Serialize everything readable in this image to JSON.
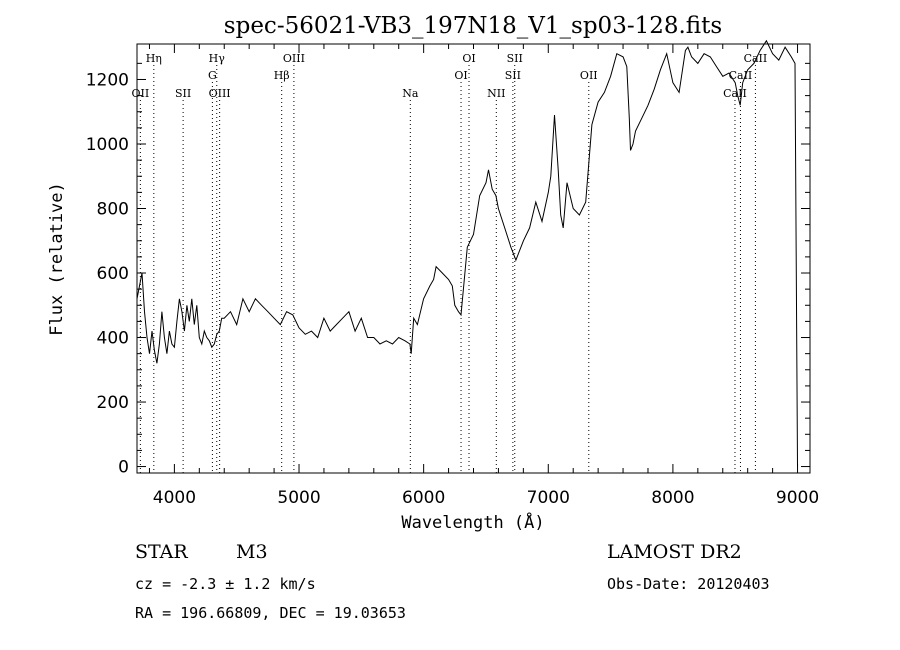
{
  "chart_data": {
    "type": "line",
    "title": "spec-56021-VB3_197N18_V1_sp03-128.fits",
    "xlabel": "Wavelength (Å)",
    "ylabel": "Flux (relative)",
    "xlim": [
      3700,
      9100
    ],
    "ylim": [
      -20,
      1310
    ],
    "xticks": [
      4000,
      5000,
      6000,
      7000,
      8000,
      9000
    ],
    "yticks": [
      0,
      200,
      400,
      600,
      800,
      1000,
      1200
    ],
    "grid": false,
    "series": [
      {
        "color": "#000000",
        "x": [
          3700,
          3720,
          3740,
          3760,
          3780,
          3800,
          3820,
          3840,
          3860,
          3880,
          3900,
          3920,
          3940,
          3960,
          3980,
          4000,
          4020,
          4040,
          4060,
          4080,
          4100,
          4120,
          4140,
          4160,
          4180,
          4200,
          4220,
          4240,
          4260,
          4280,
          4300,
          4320,
          4340,
          4360,
          4380,
          4400,
          4450,
          4500,
          4550,
          4600,
          4650,
          4700,
          4750,
          4800,
          4850,
          4900,
          4950,
          5000,
          5050,
          5100,
          5150,
          5200,
          5250,
          5300,
          5350,
          5400,
          5450,
          5500,
          5550,
          5600,
          5650,
          5700,
          5750,
          5800,
          5850,
          5890,
          5900,
          5920,
          5950,
          6000,
          6050,
          6080,
          6100,
          6150,
          6200,
          6230,
          6250,
          6280,
          6300,
          6350,
          6400,
          6450,
          6500,
          6520,
          6550,
          6580,
          6600,
          6650,
          6700,
          6720,
          6740,
          6800,
          6850,
          6900,
          6950,
          7000,
          7020,
          7050,
          7080,
          7100,
          7120,
          7150,
          7200,
          7250,
          7300,
          7350,
          7400,
          7450,
          7500,
          7550,
          7600,
          7630,
          7650,
          7660,
          7680,
          7700,
          7750,
          7800,
          7850,
          7900,
          7950,
          8000,
          8050,
          8100,
          8120,
          8150,
          8200,
          8250,
          8300,
          8350,
          8400,
          8450,
          8500,
          8520,
          8540,
          8560,
          8600,
          8650,
          8700,
          8750,
          8800,
          8850,
          8900,
          8950,
          8980,
          9000
        ],
        "y": [
          520,
          560,
          600,
          480,
          400,
          350,
          420,
          360,
          320,
          380,
          480,
          400,
          350,
          420,
          380,
          370,
          450,
          520,
          480,
          420,
          500,
          450,
          520,
          440,
          500,
          400,
          380,
          420,
          400,
          390,
          370,
          380,
          410,
          420,
          460,
          460,
          480,
          440,
          520,
          480,
          520,
          500,
          480,
          460,
          440,
          480,
          470,
          430,
          410,
          420,
          400,
          460,
          420,
          440,
          460,
          480,
          420,
          460,
          400,
          400,
          380,
          390,
          380,
          400,
          390,
          380,
          350,
          460,
          440,
          520,
          560,
          580,
          620,
          600,
          580,
          560,
          500,
          480,
          470,
          680,
          720,
          840,
          880,
          920,
          860,
          840,
          800,
          740,
          680,
          660,
          640,
          700,
          740,
          820,
          760,
          850,
          900,
          1090,
          920,
          780,
          740,
          880,
          800,
          780,
          820,
          1060,
          1130,
          1160,
          1210,
          1280,
          1270,
          1240,
          1080,
          980,
          1000,
          1040,
          1080,
          1120,
          1170,
          1230,
          1280,
          1190,
          1160,
          1290,
          1300,
          1270,
          1250,
          1280,
          1270,
          1240,
          1210,
          1220,
          1190,
          1150,
          1120,
          1190,
          1230,
          1250,
          1290,
          1320,
          1280,
          1260,
          1300,
          1270,
          1250,
          0
        ]
      }
    ],
    "lines": [
      {
        "label": "Hη",
        "wave": 3835,
        "row": 1
      },
      {
        "label": "OII",
        "wave": 3727,
        "row": 3
      },
      {
        "label": "SII",
        "wave": 4070,
        "row": 3
      },
      {
        "label": "Hγ",
        "wave": 4340,
        "row": 1
      },
      {
        "label": "G",
        "wave": 4305,
        "row": 2
      },
      {
        "label": "OIII",
        "wave": 4363,
        "row": 3
      },
      {
        "label": "OIII",
        "wave": 4959,
        "row": 1
      },
      {
        "label": "Hβ",
        "wave": 4861,
        "row": 2
      },
      {
        "label": "Na",
        "wave": 5893,
        "row": 3
      },
      {
        "label": "OI",
        "wave": 6364,
        "row": 1
      },
      {
        "label": "OI",
        "wave": 6300,
        "row": 2
      },
      {
        "label": "NII",
        "wave": 6583,
        "row": 3
      },
      {
        "label": "SII",
        "wave": 6731,
        "row": 1
      },
      {
        "label": "SII",
        "wave": 6716,
        "row": 2
      },
      {
        "label": "OII",
        "wave": 7325,
        "row": 2
      },
      {
        "label": "CaII",
        "wave": 8662,
        "row": 1
      },
      {
        "label": "CaII",
        "wave": 8542,
        "row": 2
      },
      {
        "label": "CaII",
        "wave": 8498,
        "row": 3
      }
    ]
  },
  "info": {
    "object_class": "STAR",
    "subclass": "M3",
    "survey": "LAMOST DR2",
    "cz": "cz = -2.3 ± 1.2 km/s",
    "obs_date": "Obs-Date: 20120403",
    "coords": "RA = 196.66809, DEC =  19.03653"
  }
}
